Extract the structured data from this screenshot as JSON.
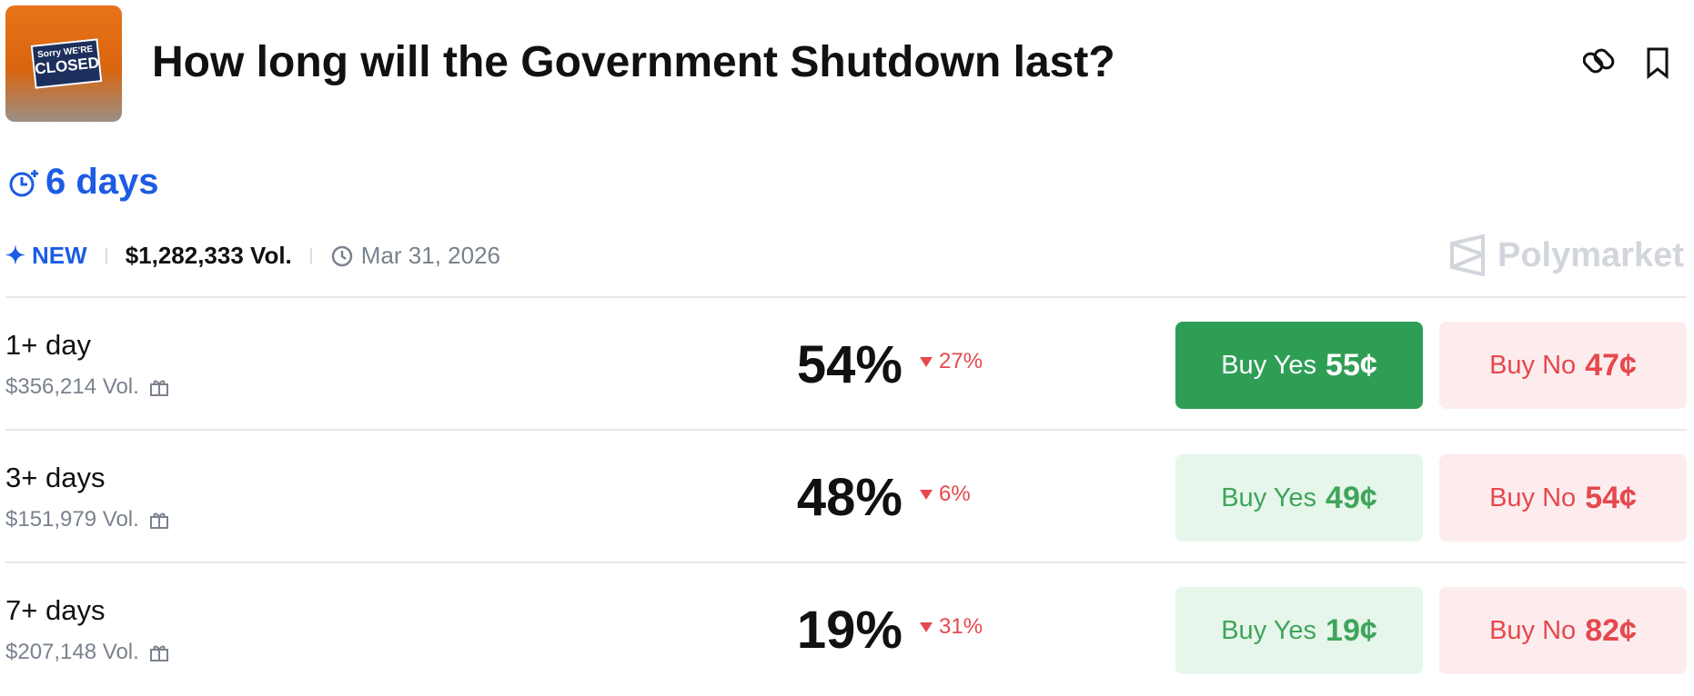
{
  "header": {
    "title": "How long will the Government Shutdown last?",
    "logo": {
      "line1": "Sorry WE'RE",
      "line2": "CLOSED"
    }
  },
  "countdown": "6 days",
  "meta": {
    "badge": "NEW",
    "volume": "$1,282,333 Vol.",
    "date": "Mar 31, 2026",
    "brand": "Polymarket"
  },
  "rows": [
    {
      "label": "1+ day",
      "volume": "$356,214 Vol.",
      "chance": "54%",
      "change": "27%",
      "yes": {
        "label": "Buy Yes",
        "price": "55¢"
      },
      "no": {
        "label": "Buy No",
        "price": "47¢"
      }
    },
    {
      "label": "3+ days",
      "volume": "$151,979 Vol.",
      "chance": "48%",
      "change": "6%",
      "yes": {
        "label": "Buy Yes",
        "price": "49¢"
      },
      "no": {
        "label": "Buy No",
        "price": "54¢"
      }
    },
    {
      "label": "7+ days",
      "volume": "$207,148 Vol.",
      "chance": "19%",
      "change": "31%",
      "yes": {
        "label": "Buy Yes",
        "price": "19¢"
      },
      "no": {
        "label": "Buy No",
        "price": "82¢"
      }
    }
  ]
}
